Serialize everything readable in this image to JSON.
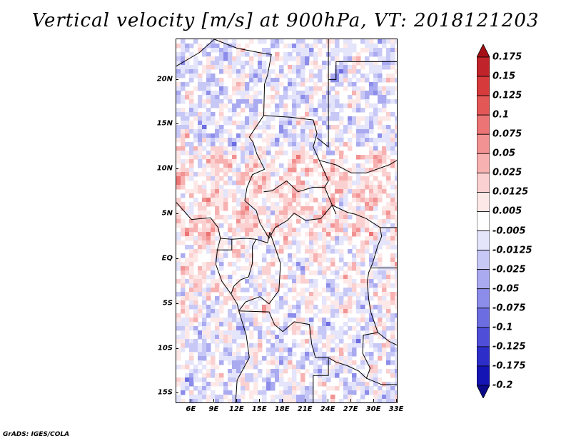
{
  "title": "Vertical velocity [m/s] at 900hPa, VT: 2018121203",
  "credit": "GrADS: IGES/COLA",
  "map": {
    "lon_range": [
      4,
      33
    ],
    "lat_range": [
      -16,
      24.5
    ],
    "lat_ticks": [
      {
        "value": 20,
        "label": "20N"
      },
      {
        "value": 15,
        "label": "15N"
      },
      {
        "value": 10,
        "label": "10N"
      },
      {
        "value": 5,
        "label": "5N"
      },
      {
        "value": 0,
        "label": "EQ"
      },
      {
        "value": -5,
        "label": "5S"
      },
      {
        "value": -10,
        "label": "10S"
      },
      {
        "value": -15,
        "label": "15S"
      }
    ],
    "lon_ticks": [
      {
        "value": 6,
        "label": "6E"
      },
      {
        "value": 9,
        "label": "9E"
      },
      {
        "value": 12,
        "label": "12E"
      },
      {
        "value": 15,
        "label": "15E"
      },
      {
        "value": 18,
        "label": "18E"
      },
      {
        "value": 21,
        "label": "21E"
      },
      {
        "value": 24,
        "label": "24E"
      },
      {
        "value": 27,
        "label": "27E"
      },
      {
        "value": 30,
        "label": "30E"
      },
      {
        "value": 33,
        "label": "33E"
      }
    ]
  },
  "colorbar": {
    "labels": [
      "0.175",
      "0.15",
      "0.125",
      "0.1",
      "0.075",
      "0.05",
      "0.025",
      "0.0125",
      "0.005",
      "-0.005",
      "-0.0125",
      "-0.025",
      "-0.05",
      "-0.075",
      "-0.1",
      "-0.125",
      "-0.175",
      "-0.2"
    ],
    "colors": [
      "#a50f15",
      "#c0242a",
      "#d63a3a",
      "#e35757",
      "#ec7474",
      "#f29292",
      "#f7b1b1",
      "#fbd0d0",
      "#fde8e8",
      "#ffffff",
      "#e4e4fb",
      "#c8c8f6",
      "#aaaaf0",
      "#8c8cea",
      "#6d6de2",
      "#4e4ed8",
      "#2d2dca",
      "#1414b4",
      "#0b0b8a"
    ]
  }
}
